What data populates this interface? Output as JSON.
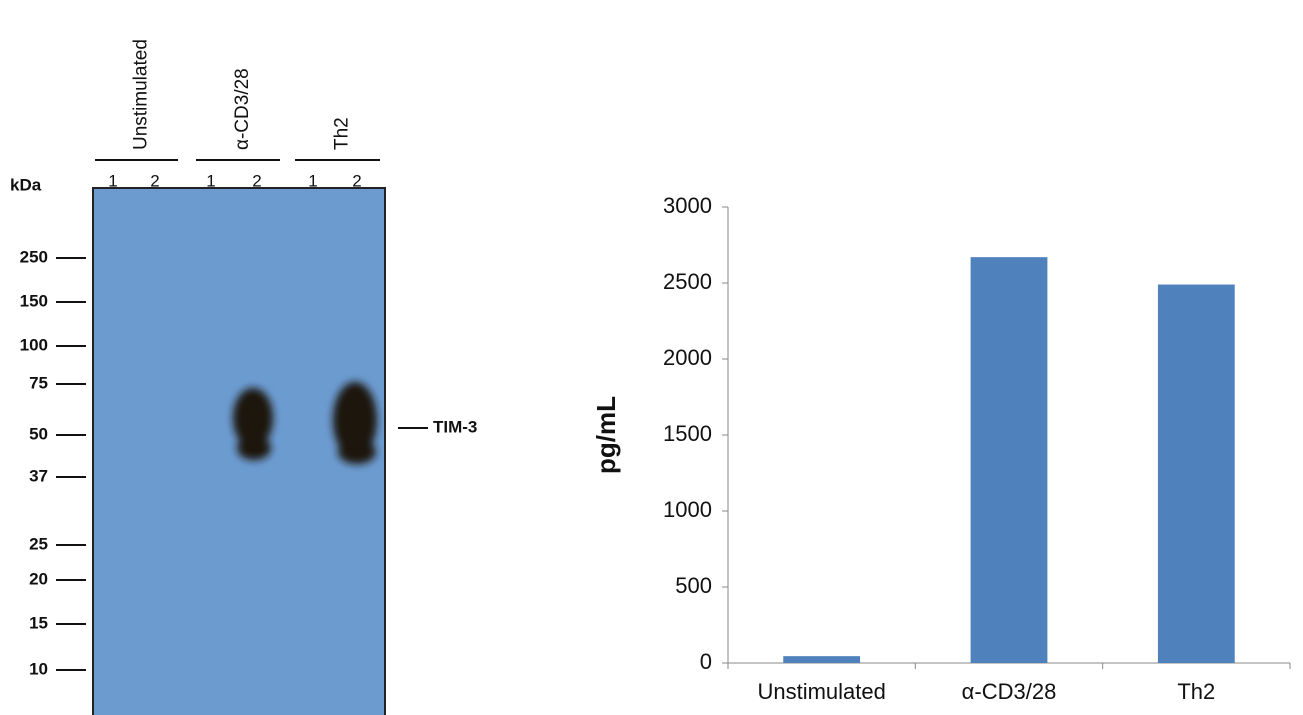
{
  "blot": {
    "unit": "kDa",
    "groups": [
      {
        "label": "Unstimulated",
        "lanes": [
          "1",
          "2"
        ]
      },
      {
        "label": "α-CD3/28",
        "lanes": [
          "1",
          "2"
        ]
      },
      {
        "label": "Th2",
        "lanes": [
          "1",
          "2"
        ]
      }
    ],
    "markers": [
      250,
      150,
      100,
      75,
      50,
      37,
      25,
      20,
      15,
      10
    ],
    "band_label": "TIM-3"
  },
  "chart_data": {
    "type": "bar",
    "ylabel": "pg/mL",
    "categories": [
      "Unstimulated",
      "α-CD3/28",
      "Th2"
    ],
    "values": [
      45,
      2670,
      2490
    ],
    "color": "#4f81bd",
    "ylim": [
      0,
      3000
    ],
    "yticks": [
      0,
      500,
      1000,
      1500,
      2000,
      2500,
      3000
    ],
    "grid": false
  }
}
